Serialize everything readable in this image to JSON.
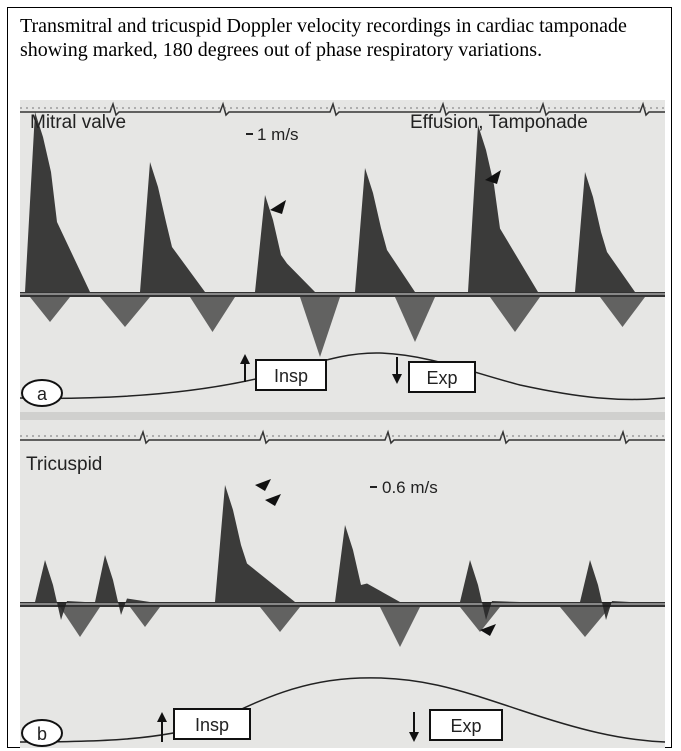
{
  "caption": "Transmitral and tricuspid Doppler velocity recordings in cardiac tamponade showing marked, 180 degrees out of phase respiratory variations.",
  "panels": [
    {
      "letter": "a",
      "valve": "Mitral valve",
      "scale": "1 m/s",
      "condition": "Effusion, Tamponade",
      "insp": "Insp",
      "exp": "Exp"
    },
    {
      "letter": "b",
      "valve": "Tricuspid",
      "scale": "0.6 m/s",
      "insp": "Insp",
      "exp": "Exp"
    }
  ]
}
